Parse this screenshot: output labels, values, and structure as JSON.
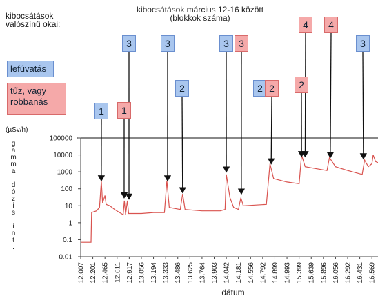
{
  "chart_data": {
    "type": "line",
    "title": "kibocsátások március 12-16 között",
    "subtitle": "(blokkok száma)",
    "legend_title": "kibocsátások valószínű okai:",
    "y_unit": "(µSv/h)",
    "ylabel": "gamma dózis int.",
    "xlabel": "dátum",
    "legend": [
      {
        "name": "lefúvatás",
        "color": "#a9c6ee"
      },
      {
        "name": "tűz, vagy robbanás",
        "color": "#f5a9a9"
      }
    ],
    "log_y": true,
    "ylim": [
      0.01,
      100000
    ],
    "yticks": [
      100000,
      10000,
      1000,
      100,
      10,
      1,
      0.1,
      0.01
    ],
    "xlim": [
      0,
      24.5
    ],
    "xticks": [
      {
        "value": 0,
        "label": "12.007"
      },
      {
        "value": 1,
        "label": "12.201"
      },
      {
        "value": 2,
        "label": "12.465"
      },
      {
        "value": 3,
        "label": "12.611"
      },
      {
        "value": 4,
        "label": "12.917"
      },
      {
        "value": 5,
        "label": "13.056"
      },
      {
        "value": 6,
        "label": "13.194"
      },
      {
        "value": 7,
        "label": "13.333"
      },
      {
        "value": 8,
        "label": "13.486"
      },
      {
        "value": 9,
        "label": "13.625"
      },
      {
        "value": 10,
        "label": "13.764"
      },
      {
        "value": 11,
        "label": "13.903"
      },
      {
        "value": 12,
        "label": "14.042"
      },
      {
        "value": 13,
        "label": "14.181"
      },
      {
        "value": 14,
        "label": "14.556"
      },
      {
        "value": 15,
        "label": "14.792"
      },
      {
        "value": 16,
        "label": "14.899"
      },
      {
        "value": 17,
        "label": "14.993"
      },
      {
        "value": 18,
        "label": "15.399"
      },
      {
        "value": 19,
        "label": "15.639"
      },
      {
        "value": 20,
        "label": "15.896"
      },
      {
        "value": 21,
        "label": "16.056"
      },
      {
        "value": 22,
        "label": "16.292"
      },
      {
        "value": 23,
        "label": "16.431"
      },
      {
        "value": 24,
        "label": "16.569"
      }
    ],
    "series": [
      {
        "color": "#d9534f",
        "x": [
          0,
          0.85,
          0.9,
          1.3,
          1.55,
          1.7,
          1.8,
          2.0,
          2.1,
          2.4,
          2.8,
          3.2,
          3.5,
          3.6,
          3.7,
          3.85,
          3.95,
          5,
          6,
          6.9,
          7.1,
          7.3,
          8.2,
          8.4,
          8.6,
          10,
          11.5,
          11.9,
          12.0,
          12.3,
          12.6,
          13.0,
          13.2,
          13.4,
          15.3,
          15.6,
          15.9,
          17,
          18.0,
          18.2,
          18.5,
          19.5,
          20.3,
          20.5,
          21,
          22,
          23.2,
          23.4,
          23.7,
          24.0,
          24.1,
          24.3,
          24.5
        ],
        "values": [
          0.07,
          0.07,
          4,
          5,
          8,
          300,
          15,
          40,
          12,
          10,
          6,
          4,
          3,
          20,
          3,
          20,
          3.5,
          3.5,
          4,
          4,
          300,
          8,
          6,
          50,
          6,
          5,
          5,
          6,
          700,
          30,
          8,
          6,
          30,
          10,
          12,
          3000,
          400,
          250,
          200,
          10000,
          2000,
          1500,
          1200,
          7000,
          2000,
          1200,
          700,
          5000,
          2000,
          3000,
          10000,
          4000,
          3500
        ]
      }
    ],
    "annotations": [
      {
        "label": "1",
        "kind": "blue",
        "x": 1.7,
        "y": 300
      },
      {
        "label": "1",
        "kind": "red",
        "x": 3.58,
        "y": 30
      },
      {
        "label": "3",
        "kind": "blue",
        "x": 3.98,
        "y": 25
      },
      {
        "label": "3",
        "kind": "blue",
        "x": 7.16,
        "y": 300
      },
      {
        "label": "2",
        "kind": "blue",
        "x": 8.4,
        "y": 60
      },
      {
        "label": "3",
        "kind": "blue",
        "x": 12.0,
        "y": 1000
      },
      {
        "label": "3",
        "kind": "red",
        "x": 13.24,
        "y": 50
      },
      {
        "label": "2",
        "kind": "blue"
      },
      {
        "label": "2",
        "kind": "red",
        "x": 15.7,
        "y": 3000
      },
      {
        "label": "2",
        "kind": "red",
        "x": 18.2,
        "y": 8000
      },
      {
        "label": "4",
        "kind": "red",
        "x": 18.5,
        "y": 8000
      },
      {
        "label": "4",
        "kind": "red",
        "x": 20.57,
        "y": 7000
      },
      {
        "label": "3",
        "kind": "blue",
        "x": 23.3,
        "y": 6000
      }
    ]
  }
}
